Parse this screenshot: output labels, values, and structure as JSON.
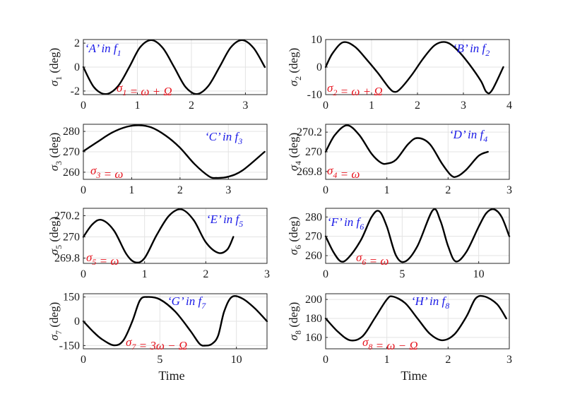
{
  "chart_data": [
    {
      "type": "line",
      "ylabel": "σ1 (deg)",
      "xlabel": "",
      "xlim": [
        0,
        3.4
      ],
      "ylim": [
        -2.3,
        2.3
      ],
      "xticks": [
        "0",
        "1",
        "2",
        "3"
      ],
      "yticks": [
        "-2",
        "0",
        "2"
      ],
      "annotation_blue": "‘A’ in f1",
      "annotation_red": "σ1 = ω + Ω",
      "series": [
        {
          "name": "σ1",
          "x": [
            0,
            0.2,
            0.42,
            0.64,
            0.85,
            1.05,
            1.26,
            1.47,
            1.68,
            1.89,
            2.1,
            2.31,
            2.52,
            2.73,
            2.94,
            3.15,
            3.36
          ],
          "y": [
            0,
            -1.7,
            -2.25,
            -1.6,
            0,
            1.65,
            2.25,
            1.6,
            0,
            -1.65,
            -2.25,
            -1.6,
            0,
            1.65,
            2.25,
            1.6,
            0
          ]
        }
      ]
    },
    {
      "type": "line",
      "ylabel": "σ2 (deg)",
      "xlabel": "",
      "xlim": [
        0,
        4
      ],
      "ylim": [
        -10,
        10
      ],
      "xticks": [
        "0",
        "1",
        "2",
        "3",
        "4"
      ],
      "yticks": [
        "-10",
        "0",
        "10"
      ],
      "annotation_blue": "‘B’ in f2",
      "annotation_red": "σ2 = ω + Ω",
      "series": [
        {
          "name": "σ2",
          "x": [
            0,
            0.15,
            0.38,
            0.63,
            0.88,
            1.13,
            1.38,
            1.5,
            1.62,
            1.87,
            2.12,
            2.38,
            2.63,
            2.88,
            3.13,
            3.38,
            3.5,
            3.62,
            3.87
          ],
          "y": [
            0,
            5,
            9,
            7.5,
            3,
            -2,
            -7.5,
            -9,
            -8,
            -3,
            3,
            8,
            9,
            6,
            1,
            -5,
            -9,
            -8.5,
            0
          ]
        }
      ]
    },
    {
      "type": "line",
      "ylabel": "σ3 (deg)",
      "xlabel": "",
      "xlim": [
        0,
        3.8
      ],
      "ylim": [
        256.5,
        283.5
      ],
      "xticks": [
        "0",
        "1",
        "2",
        "3"
      ],
      "yticks": [
        "260",
        "270",
        "280"
      ],
      "annotation_blue": "‘C’ in f3",
      "annotation_red": "σ3 = ω",
      "series": [
        {
          "name": "σ3",
          "x": [
            0,
            0.3,
            0.6,
            0.9,
            1.15,
            1.4,
            1.7,
            2.0,
            2.3,
            2.6,
            2.75,
            3.0,
            3.3,
            3.75
          ],
          "y": [
            270.3,
            275,
            279.5,
            282.3,
            283,
            282,
            278,
            272,
            264,
            258,
            257.2,
            257.8,
            261,
            270
          ]
        }
      ]
    },
    {
      "type": "line",
      "ylabel": "σ4 (deg)",
      "xlabel": "",
      "xlim": [
        0,
        3
      ],
      "ylim": [
        269.72,
        270.28
      ],
      "xticks": [
        "0",
        "1",
        "2",
        "3"
      ],
      "yticks": [
        "269.8",
        "270",
        "270.2"
      ],
      "annotation_blue": "‘D’ in f4",
      "annotation_red": "σ4 = ω",
      "series": [
        {
          "name": "σ4",
          "x": [
            0,
            0.15,
            0.35,
            0.55,
            0.75,
            0.9,
            1.0,
            1.15,
            1.35,
            1.5,
            1.7,
            1.9,
            2.05,
            2.15,
            2.3,
            2.5,
            2.65
          ],
          "y": [
            270,
            270.17,
            270.27,
            270.17,
            269.98,
            269.89,
            269.88,
            269.92,
            270.08,
            270.14,
            270.08,
            269.88,
            269.76,
            269.75,
            269.82,
            269.96,
            270
          ]
        }
      ]
    },
    {
      "type": "line",
      "ylabel": "σ5 (deg)",
      "xlabel": "",
      "xlim": [
        0,
        3
      ],
      "ylim": [
        269.75,
        270.27
      ],
      "xticks": [
        "0",
        "1",
        "2",
        "3"
      ],
      "yticks": [
        "269.8",
        "270",
        "270.2"
      ],
      "annotation_blue": "‘E’ in f5",
      "annotation_red": "σ5 = ω",
      "series": [
        {
          "name": "σ5",
          "x": [
            0,
            0.15,
            0.3,
            0.5,
            0.7,
            0.85,
            1.0,
            1.2,
            1.4,
            1.6,
            1.8,
            2.0,
            2.2,
            2.35,
            2.45
          ],
          "y": [
            270,
            270.12,
            270.16,
            270.06,
            269.84,
            269.76,
            269.8,
            270.02,
            270.2,
            270.26,
            270.16,
            269.95,
            269.85,
            269.88,
            270
          ]
        }
      ]
    },
    {
      "type": "line",
      "ylabel": "σ6 (deg)",
      "xlabel": "",
      "xlim": [
        0,
        12
      ],
      "ylim": [
        256,
        284.5
      ],
      "xticks": [
        "0",
        "5",
        "10"
      ],
      "yticks": [
        "260",
        "270",
        "280"
      ],
      "annotation_blue": "‘F’ in f6",
      "annotation_red": "σ6 = ω",
      "series": [
        {
          "name": "σ6",
          "x": [
            0,
            0.5,
            1.0,
            1.5,
            2.3,
            3.0,
            3.5,
            4.0,
            4.6,
            5.2,
            6.0,
            7.0,
            7.5,
            8.0,
            8.5,
            9.2,
            10.0,
            10.5,
            11.0,
            11.5,
            12
          ],
          "y": [
            270,
            262,
            257,
            259,
            268,
            280,
            283,
            275,
            260,
            257,
            265,
            283.5,
            278,
            265,
            257,
            262,
            275,
            282,
            284,
            280,
            270
          ]
        }
      ]
    },
    {
      "type": "line",
      "ylabel": "σ7 (deg)",
      "xlabel": "Time",
      "xlim": [
        0,
        12
      ],
      "ylim": [
        -170,
        170
      ],
      "xticks": [
        "0",
        "5",
        "10"
      ],
      "yticks": [
        "-150",
        "0",
        "150"
      ],
      "annotation_blue": "‘G’ in f7",
      "annotation_red": "σ7 = 3ω − Ω",
      "series": [
        {
          "name": "σ7",
          "x": [
            0,
            0.6,
            1.2,
            2.0,
            2.6,
            3.2,
            3.7,
            4.2,
            5.0,
            6.0,
            7.0,
            7.6,
            8.0,
            8.4,
            8.8,
            9.2,
            9.7,
            10.4,
            11.2,
            12
          ],
          "y": [
            0,
            -60,
            -110,
            -148,
            -120,
            0,
            130,
            150,
            135,
            60,
            -60,
            -140,
            -150,
            -140,
            -90,
            60,
            150,
            140,
            80,
            0
          ]
        }
      ]
    },
    {
      "type": "line",
      "ylabel": "σ8 (deg)",
      "xlabel": "Time",
      "xlim": [
        0,
        3
      ],
      "ylim": [
        148,
        206
      ],
      "xticks": [
        "0",
        "1",
        "2",
        "3"
      ],
      "yticks": [
        "160",
        "180",
        "200"
      ],
      "annotation_blue": "‘H’ in f8",
      "annotation_red": "σ8 = ω − Ω",
      "series": [
        {
          "name": "σ8",
          "x": [
            0,
            0.2,
            0.4,
            0.6,
            0.8,
            1.0,
            1.1,
            1.3,
            1.5,
            1.7,
            1.9,
            2.1,
            2.3,
            2.45,
            2.6,
            2.8,
            2.95
          ],
          "y": [
            180,
            166,
            157,
            161,
            180,
            200,
            203,
            196,
            180,
            164,
            157,
            163,
            182,
            201,
            203,
            195,
            180
          ]
        }
      ]
    }
  ]
}
